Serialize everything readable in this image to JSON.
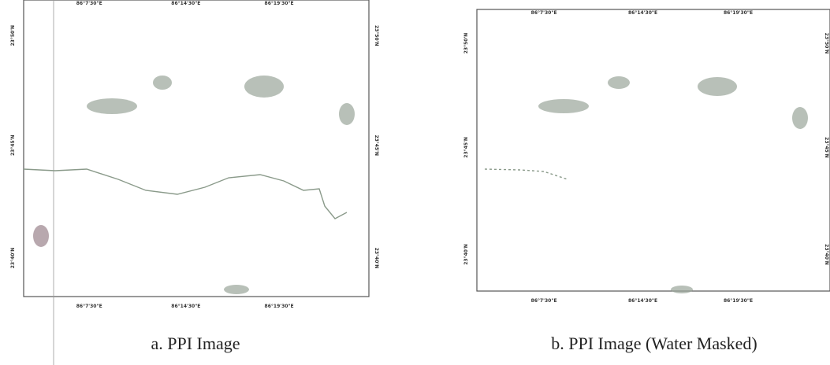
{
  "panels": [
    {
      "caption": "a.   PPI Image",
      "top_labels": [
        "86°7'30\"E",
        "86°14'30\"E",
        "86°19'30\"E"
      ],
      "bottom_labels": [
        "86°7'30\"E",
        "86°14'30\"E",
        "86°19'30\"E"
      ],
      "left_labels": [
        "23°50'N",
        "23°45'N",
        "23°40'N"
      ],
      "right_labels": [
        "23°50'N",
        "23°45'N",
        "23°40'N"
      ]
    },
    {
      "caption": "b.  PPI Image (Water Masked)",
      "top_labels": [
        "86°7'30\"E",
        "86°14'30\"E",
        "86°19'30\"E"
      ],
      "bottom_labels": [
        "86°7'30\"E",
        "86°14'30\"E",
        "86°19'30\"E"
      ],
      "left_labels": [
        "23°50'N",
        "23°45'N",
        "23°40'N"
      ],
      "right_labels": [
        "23°50'N",
        "23°45'N",
        "23°40'N"
      ]
    }
  ]
}
